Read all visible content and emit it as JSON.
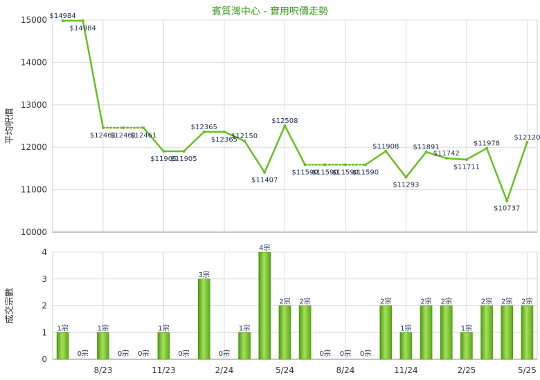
{
  "chart_data": [
    {
      "type": "line",
      "title": "賓質灣中心 - 實用呎價走勢",
      "ylabel": "平均呎價",
      "ylim": [
        10000,
        15000
      ],
      "yticks": [
        10000,
        11000,
        12000,
        13000,
        14000,
        15000
      ],
      "grid": true,
      "line_color": "#66c01f",
      "x_tick_labels": [
        "8/23",
        "11/23",
        "2/24",
        "5/24",
        "8/24",
        "11/24",
        "2/25",
        "5/25"
      ],
      "series": [
        {
          "values": [
            14984,
            14984,
            12461,
            12461,
            12461,
            11905,
            11905,
            12365,
            12365,
            12150,
            11407,
            12508,
            11590,
            11590,
            11590,
            11590,
            11908,
            11293,
            11891,
            11742,
            11711,
            11978,
            10737,
            12120
          ],
          "labels": [
            "$14984",
            "$14984",
            "$12461",
            "$12461",
            "$12461",
            "$11905",
            "$11905",
            "$12365",
            "$12365",
            "$12150",
            "$11407",
            "$12508",
            "$11590",
            "$11590",
            "$11590",
            "$11590",
            "$11908",
            "$11293",
            "$11891",
            "$11742",
            "$11711",
            "$11978",
            "$10737",
            "$12120"
          ],
          "interpolated": [
            false,
            false,
            false,
            true,
            false,
            false,
            false,
            false,
            false,
            false,
            false,
            false,
            false,
            true,
            true,
            false,
            false,
            false,
            false,
            false,
            false,
            false,
            false,
            false
          ]
        }
      ]
    },
    {
      "type": "bar",
      "ylabel": "成交宗數",
      "ylim": [
        0,
        4
      ],
      "yticks": [
        0,
        1,
        2,
        3,
        4
      ],
      "grid": true,
      "bar_color": "#76c22a",
      "x_tick_labels": [
        "8/23",
        "11/23",
        "2/24",
        "5/24",
        "8/24",
        "11/24",
        "2/25",
        "5/25"
      ],
      "values": [
        1,
        0,
        1,
        0,
        0,
        1,
        0,
        3,
        0,
        1,
        4,
        2,
        2,
        0,
        0,
        0,
        2,
        1,
        2,
        2,
        1,
        2,
        2,
        2
      ],
      "labels": [
        "1宗",
        "0宗",
        "1宗",
        "0宗",
        "0宗",
        "1宗",
        "0宗",
        "3宗",
        "0宗",
        "1宗",
        "4宗",
        "2宗",
        "2宗",
        "0宗",
        "0宗",
        "0宗",
        "2宗",
        "1宗",
        "2宗",
        "2宗",
        "1宗",
        "2宗",
        "2宗",
        "2宗"
      ]
    }
  ]
}
